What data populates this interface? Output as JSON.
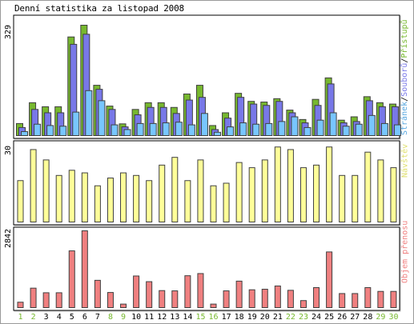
{
  "title": "Denní statistika za listopad 2008",
  "colors": {
    "hits": "#77b82f",
    "files": "#7878e8",
    "pages": "#78c6ff",
    "visits": "#ffff99",
    "kbytes": "#f08080",
    "weekend": "#77b82f",
    "weekday": "#000000",
    "border": "#808080"
  },
  "chart_data": [
    {
      "type": "bar",
      "panel": "top",
      "ymax_label": "329",
      "ylim": [
        0,
        329
      ],
      "categories": [
        "1",
        "2",
        "3",
        "4",
        "5",
        "6",
        "7",
        "8",
        "9",
        "10",
        "11",
        "12",
        "13",
        "14",
        "15",
        "16",
        "17",
        "18",
        "19",
        "20",
        "21",
        "22",
        "23",
        "24",
        "25",
        "26",
        "27",
        "28",
        "29",
        "30"
      ],
      "weekend_days": [
        "1",
        "2",
        "8",
        "9",
        "15",
        "16",
        "22",
        "23",
        "29",
        "30"
      ],
      "legend": [
        "Přístupů",
        "Souborů",
        "Stránek"
      ],
      "legend_sep": "/",
      "series": [
        {
          "name": "Přístupů",
          "color": "#77b82f",
          "values": [
            36,
            98,
            86,
            86,
            294,
            329,
            150,
            88,
            35,
            78,
            98,
            98,
            84,
            124,
            150,
            30,
            68,
            126,
            102,
            100,
            110,
            76,
            48,
            108,
            172,
            46,
            56,
            116,
            98,
            94
          ]
        },
        {
          "name": "Souborů",
          "color": "#7878e8",
          "values": [
            24,
            78,
            68,
            68,
            272,
            302,
            138,
            78,
            26,
            62,
            84,
            84,
            66,
            106,
            114,
            18,
            52,
            114,
            94,
            90,
            102,
            68,
            38,
            90,
            154,
            38,
            42,
            104,
            86,
            86
          ]
        },
        {
          "name": "Stránek",
          "color": "#78c6ff",
          "values": [
            12,
            34,
            30,
            28,
            70,
            134,
            104,
            32,
            18,
            36,
            36,
            38,
            40,
            32,
            66,
            10,
            26,
            38,
            34,
            36,
            42,
            56,
            24,
            46,
            68,
            28,
            34,
            60,
            36,
            32
          ]
        }
      ]
    },
    {
      "type": "bar",
      "panel": "middle",
      "ymax_label": "30",
      "ylim": [
        0,
        30
      ],
      "categories": [
        "1",
        "2",
        "3",
        "4",
        "5",
        "6",
        "7",
        "8",
        "9",
        "10",
        "11",
        "12",
        "13",
        "14",
        "15",
        "16",
        "17",
        "18",
        "19",
        "20",
        "21",
        "22",
        "23",
        "24",
        "25",
        "26",
        "27",
        "28",
        "29",
        "30"
      ],
      "legend": [
        "Návštěv"
      ],
      "series": [
        {
          "name": "Návštěv",
          "color": "#ffff99",
          "values": [
            16,
            28,
            24,
            18,
            20,
            19,
            14,
            17,
            19,
            18,
            16,
            22,
            25,
            16,
            24,
            14,
            15,
            23,
            21,
            24,
            29,
            28,
            21,
            22,
            29,
            18,
            18,
            27,
            24,
            21
          ]
        }
      ]
    },
    {
      "type": "bar",
      "panel": "bottom",
      "ymax_label": "2842",
      "ylim": [
        0,
        2842
      ],
      "categories": [
        "1",
        "2",
        "3",
        "4",
        "5",
        "6",
        "7",
        "8",
        "9",
        "10",
        "11",
        "12",
        "13",
        "14",
        "15",
        "16",
        "17",
        "18",
        "19",
        "20",
        "21",
        "22",
        "23",
        "24",
        "25",
        "26",
        "27",
        "28",
        "29",
        "30"
      ],
      "legend": [
        "Objem přenosu"
      ],
      "series": [
        {
          "name": "Objem přenosu",
          "color": "#f08080",
          "values": [
            200,
            720,
            550,
            550,
            2100,
            2842,
            1010,
            560,
            130,
            1170,
            960,
            630,
            620,
            1180,
            1260,
            130,
            620,
            980,
            660,
            680,
            800,
            640,
            260,
            740,
            2060,
            520,
            520,
            740,
            600,
            600
          ]
        }
      ]
    }
  ]
}
